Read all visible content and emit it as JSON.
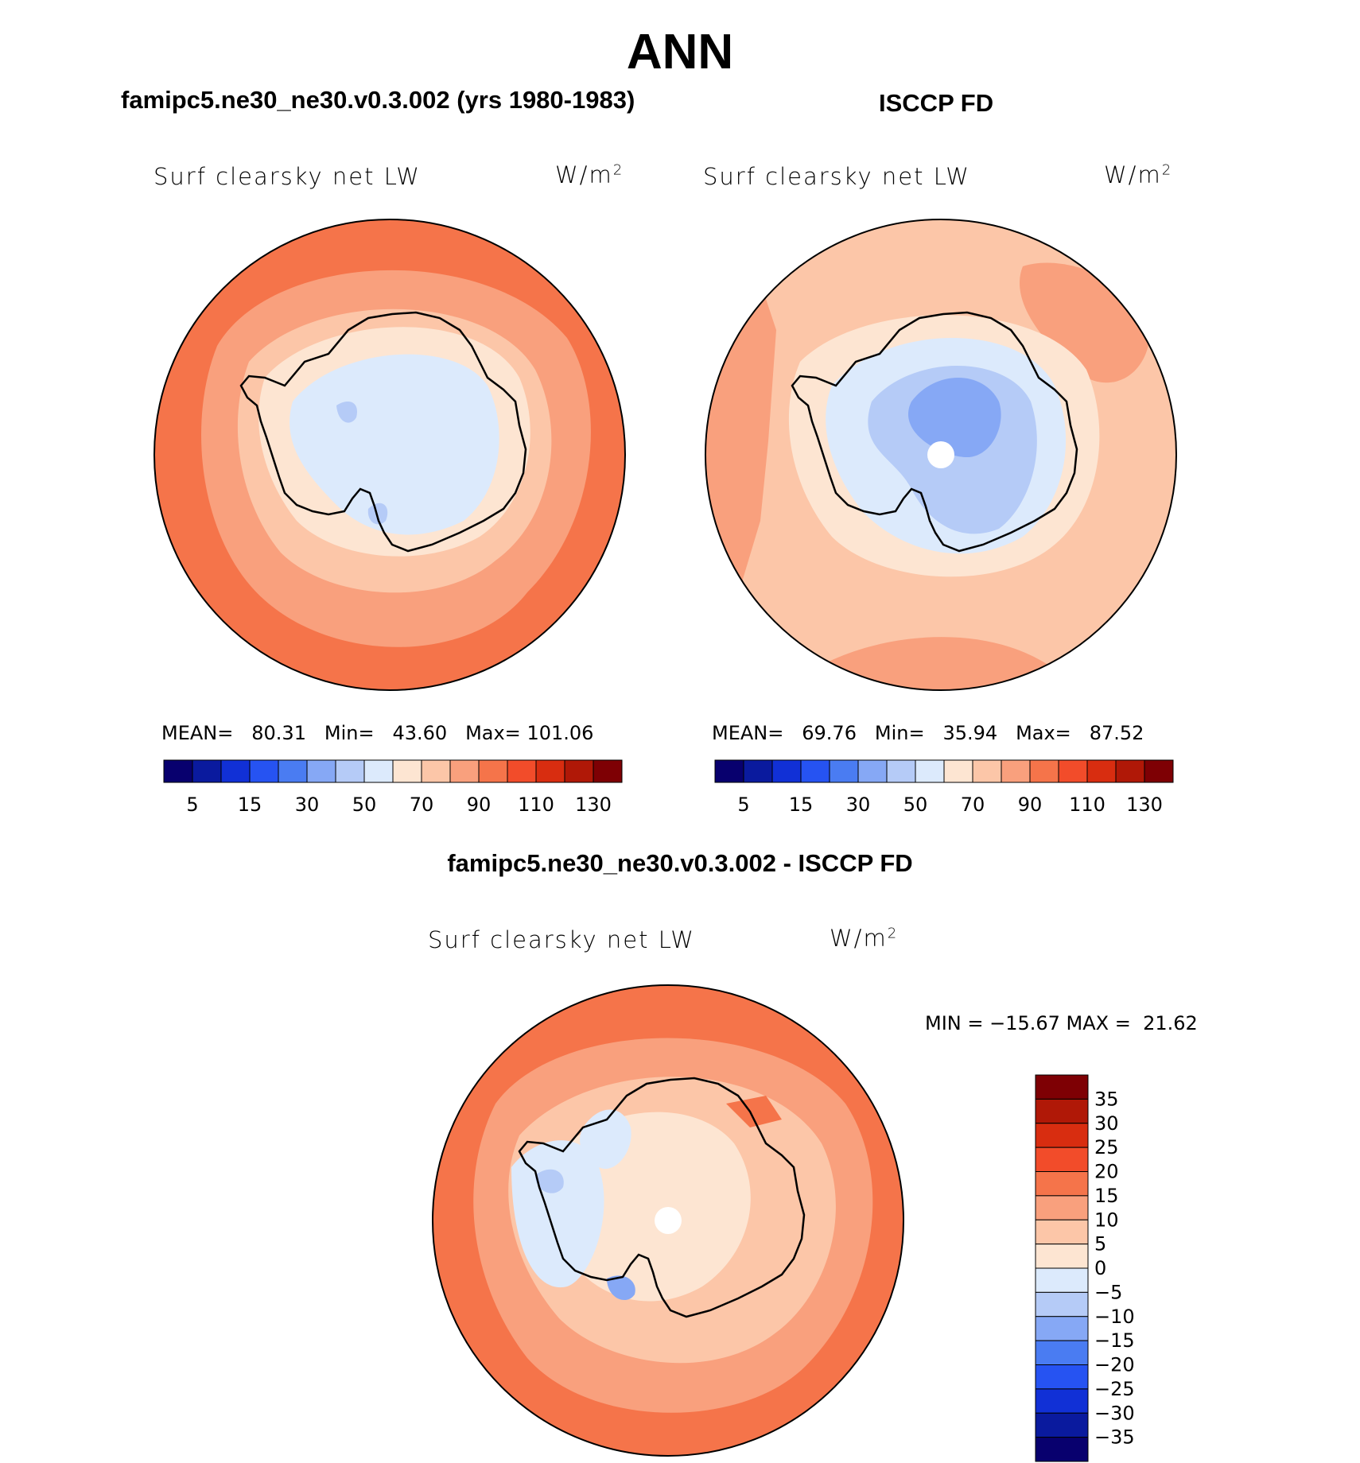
{
  "figure": {
    "title": "ANN",
    "diff_title": "famipc5.ne30_ne30.v0.3.002 - ISCCP FD"
  },
  "panels": [
    {
      "id": "model",
      "header": "famipc5.ne30_ne30.v0.3.002 (yrs 1980-1983)",
      "variable": "Surf clearsky net LW",
      "units": "W/m",
      "units_exp": "2",
      "stats": {
        "mean_label": "MEAN=",
        "mean": "80.31",
        "min_label": "Min=",
        "min": "43.60",
        "max_label": "Max=",
        "max": "101.06"
      }
    },
    {
      "id": "obs",
      "header": "ISCCP FD",
      "variable": "Surf clearsky net LW",
      "units": "W/m",
      "units_exp": "2",
      "stats": {
        "mean_label": "MEAN=",
        "mean": "69.76",
        "min_label": "Min=",
        "min": "35.94",
        "max_label": "Max=",
        "max": "87.52"
      }
    },
    {
      "id": "diff",
      "variable": "Surf clearsky net LW",
      "units": "W/m",
      "units_exp": "2",
      "stats_text": "MIN = −15.67 MAX =  21.62"
    }
  ],
  "chart_data": [
    {
      "type": "heatmap",
      "title": "Surf clearsky net LW",
      "projection": "south polar stereographic",
      "units": "W/m2",
      "colorbar_labels": [
        "5",
        "15",
        "30",
        "50",
        "70",
        "90",
        "110",
        "130"
      ],
      "colorbar_colors": [
        "#08006e",
        "#0a1a9e",
        "#1130d6",
        "#2653f2",
        "#4a7cf2",
        "#86a8f5",
        "#b5cbf7",
        "#dceafc",
        "#fde5d2",
        "#fcc6a8",
        "#f9a07d",
        "#f5744a",
        "#f24c2a",
        "#d82d10",
        "#b01807",
        "#7e0004"
      ],
      "stats": {
        "mean": 80.31,
        "min": 43.6,
        "max": 101.06
      }
    },
    {
      "type": "heatmap",
      "title": "Surf clearsky net LW",
      "projection": "south polar stereographic",
      "units": "W/m2",
      "colorbar_labels": [
        "5",
        "15",
        "30",
        "50",
        "70",
        "90",
        "110",
        "130"
      ],
      "colorbar_colors": [
        "#08006e",
        "#0a1a9e",
        "#1130d6",
        "#2653f2",
        "#4a7cf2",
        "#86a8f5",
        "#b5cbf7",
        "#dceafc",
        "#fde5d2",
        "#fcc6a8",
        "#f9a07d",
        "#f5744a",
        "#f24c2a",
        "#d82d10",
        "#b01807",
        "#7e0004"
      ],
      "stats": {
        "mean": 69.76,
        "min": 35.94,
        "max": 87.52
      }
    },
    {
      "type": "heatmap",
      "title": "Surf clearsky net LW",
      "projection": "south polar stereographic",
      "units": "W/m2",
      "colorbar_labels": [
        "35",
        "30",
        "25",
        "20",
        "15",
        "10",
        "5",
        "0",
        "−5",
        "−10",
        "−15",
        "−20",
        "−25",
        "−30",
        "−35"
      ],
      "colorbar_colors": [
        "#7e0004",
        "#b01807",
        "#d82d10",
        "#f24c2a",
        "#f5744a",
        "#f9a07d",
        "#fcc6a8",
        "#fde5d2",
        "#dceafc",
        "#b5cbf7",
        "#86a8f5",
        "#4a7cf2",
        "#2653f2",
        "#1130d6",
        "#0a1a9e",
        "#08006e"
      ],
      "stats": {
        "min": -15.67,
        "max": 21.62
      }
    }
  ]
}
